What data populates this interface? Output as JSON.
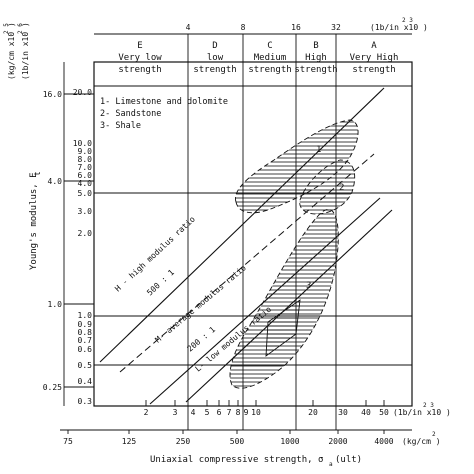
{
  "figure": {
    "x_axis_label": "Uniaxial compressive strength, σ",
    "x_axis_label_sub": "a",
    "x_axis_label_suffix": "(ult)",
    "y_axis_label": "Young's modulus, E",
    "y_axis_label_sub": "t",
    "y_units_outer": "(kg/cm x10 )",
    "y_units_inner": "(1b/in x10 )",
    "y_units_outer_sup": "2   5",
    "y_units_inner_sup": "2  6",
    "top_units": "(1b/in x10 )",
    "top_units_sup": "2   3",
    "bottom_upper_units": "(1b/in x10 )",
    "bottom_upper_units_sup": "2   3",
    "bottom_lower_units": "(kg/cm )",
    "bottom_lower_units_sup": "2"
  },
  "strength_classes": [
    {
      "letter": "E",
      "line1": "Very low",
      "line2": "strength"
    },
    {
      "letter": "D",
      "line1": "low",
      "line2": "strength"
    },
    {
      "letter": "C",
      "line1": "Medium",
      "line2": "strength"
    },
    {
      "letter": "B",
      "line1": "High",
      "line2": "strength"
    },
    {
      "letter": "A",
      "line1": "Very High",
      "line2": "strength"
    }
  ],
  "top_ticks": [
    "4",
    "8",
    "16",
    "32"
  ],
  "bottom_psi_ticks": [
    "2",
    "3",
    "4",
    "5",
    "6",
    "7",
    "8",
    "9",
    "10",
    "20",
    "30",
    "40",
    "50"
  ],
  "bottom_kg_ticks": [
    "75",
    "125",
    "250",
    "500",
    "1000",
    "2000",
    "4000"
  ],
  "left_outer_ticks": [
    "16.0",
    "4.0",
    "1.0",
    "0.25"
  ],
  "left_inner_ticks": [
    "20.0",
    "10.0",
    "9.0",
    "8.0",
    "7.0",
    "6.0",
    "5.0",
    "4.0",
    "3.0",
    "2.0",
    "1.0",
    "0.9",
    "0.8",
    "0.7",
    "0.6",
    "0.5",
    "0.4",
    "0.3"
  ],
  "legend": [
    "1- Limestone and dolomite",
    "2- Sandstone",
    "3- Shale"
  ],
  "ratio_lines": [
    {
      "name": "H",
      "label": "H - high modulus ratio",
      "ratio": "500 : 1"
    },
    {
      "name": "M",
      "label": "M- average modulus ratio",
      "ratio": "200 : 1"
    },
    {
      "name": "L",
      "label": "L- low modulus ratio",
      "ratio": ""
    }
  ],
  "zone_labels": [
    "1",
    "2",
    "3"
  ]
}
